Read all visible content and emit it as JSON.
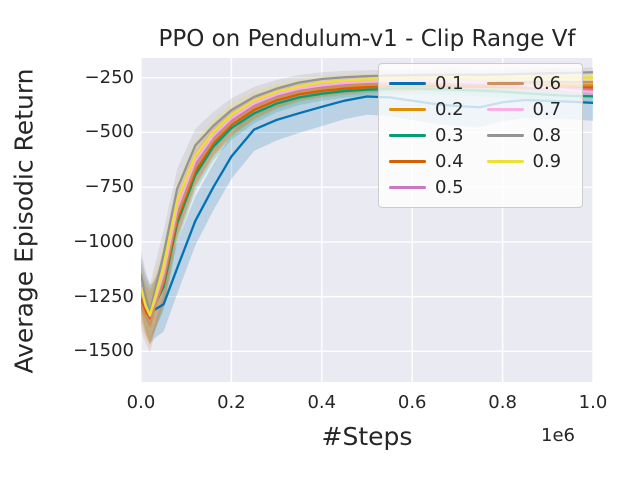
{
  "title": "PPO on Pendulum-v1 - Clip Range Vf",
  "chart_data": {
    "type": "line",
    "title": "PPO on Pendulum-v1 - Clip Range Vf",
    "xlabel": "#Steps",
    "ylabel": "Average Episodic Return",
    "x_offset_label": "1e6",
    "legend_title": null,
    "legend_position": "upper right",
    "legend_columns": 2,
    "grid": true,
    "background_color": "#eaeaf2",
    "grid_color": "#ffffff",
    "text_color": "#262626",
    "band_opacity": 0.2,
    "xlim": [
      0,
      1000000
    ],
    "ylim": [
      -1640,
      -160
    ],
    "x_ticks": {
      "values": [
        0,
        200000,
        400000,
        600000,
        800000,
        1000000
      ],
      "labels": [
        "0.0",
        "0.2",
        "0.4",
        "0.6",
        "0.8",
        "1.0"
      ]
    },
    "y_ticks": {
      "values": [
        -250,
        -500,
        -750,
        -1000,
        -1250,
        -1500
      ],
      "labels": [
        "−250",
        "−500",
        "−750",
        "−1000",
        "−1250",
        "−1500"
      ]
    },
    "x": [
      0,
      10000,
      20000,
      30000,
      50000,
      80000,
      120000,
      160000,
      200000,
      250000,
      300000,
      350000,
      400000,
      450000,
      500000,
      550000,
      600000,
      650000,
      700000,
      750000,
      800000,
      850000,
      900000,
      950000,
      1000000
    ],
    "series": [
      {
        "name": "0.1",
        "color": "#0173b2",
        "values": [
          -1190,
          -1280,
          -1330,
          -1310,
          -1285,
          -1120,
          -905,
          -750,
          -610,
          -487,
          -443,
          -412,
          -383,
          -355,
          -336,
          -340,
          -355,
          -370,
          -380,
          -385,
          -362,
          -352,
          -356,
          -360,
          -365
        ],
        "ci_halfwidth": [
          120,
          130,
          135,
          130,
          125,
          118,
          112,
          106,
          102,
          98,
          94,
          90,
          88,
          85,
          83,
          85,
          88,
          90,
          92,
          90,
          86,
          83,
          81,
          80,
          82
        ]
      },
      {
        "name": "0.2",
        "color": "#de8f05",
        "values": [
          -1230,
          -1300,
          -1345,
          -1290,
          -1180,
          -888,
          -668,
          -543,
          -460,
          -392,
          -348,
          -320,
          -304,
          -294,
          -288,
          -285,
          -283,
          -282,
          -283,
          -284,
          -285,
          -286,
          -286,
          -286,
          -285
        ],
        "ci_halfwidth": [
          105,
          115,
          122,
          116,
          106,
          88,
          72,
          62,
          53,
          45,
          39,
          34,
          31,
          29,
          27,
          26,
          25,
          25,
          24,
          24,
          23,
          23,
          22,
          22,
          22
        ]
      },
      {
        "name": "0.3",
        "color": "#029e73",
        "values": [
          -1200,
          -1285,
          -1332,
          -1290,
          -1205,
          -915,
          -695,
          -565,
          -480,
          -413,
          -368,
          -340,
          -323,
          -311,
          -305,
          -301,
          -300,
          -302,
          -305,
          -309,
          -314,
          -321,
          -328,
          -333,
          -335
        ],
        "ci_halfwidth": [
          100,
          112,
          120,
          115,
          108,
          90,
          74,
          63,
          54,
          46,
          40,
          35,
          32,
          30,
          28,
          27,
          26,
          26,
          26,
          27,
          28,
          30,
          32,
          33,
          34
        ]
      },
      {
        "name": "0.4",
        "color": "#d55e00",
        "values": [
          -1260,
          -1315,
          -1350,
          -1295,
          -1190,
          -898,
          -678,
          -550,
          -466,
          -398,
          -354,
          -326,
          -310,
          -300,
          -294,
          -291,
          -289,
          -289,
          -290,
          -292,
          -293,
          -294,
          -295,
          -295,
          -295
        ],
        "ci_halfwidth": [
          108,
          116,
          124,
          118,
          108,
          90,
          73,
          62,
          53,
          45,
          39,
          34,
          31,
          29,
          27,
          26,
          25,
          25,
          24,
          24,
          24,
          23,
          23,
          23,
          23
        ]
      },
      {
        "name": "0.5",
        "color": "#cc78bc",
        "values": [
          -1220,
          -1295,
          -1340,
          -1285,
          -1155,
          -860,
          -645,
          -525,
          -444,
          -376,
          -334,
          -307,
          -292,
          -281,
          -276,
          -273,
          -272,
          -274,
          -277,
          -281,
          -286,
          -291,
          -296,
          -301,
          -305
        ],
        "ci_halfwidth": [
          102,
          112,
          120,
          114,
          104,
          86,
          70,
          60,
          51,
          44,
          38,
          33,
          30,
          28,
          26,
          25,
          25,
          24,
          24,
          24,
          24,
          25,
          26,
          27,
          28
        ]
      },
      {
        "name": "0.6",
        "color": "#ca9161",
        "values": [
          -1290,
          -1340,
          -1380,
          -1300,
          -1175,
          -880,
          -660,
          -537,
          -455,
          -386,
          -343,
          -315,
          -299,
          -288,
          -281,
          -278,
          -276,
          -274,
          -273,
          -272,
          -271,
          -270,
          -270,
          -270,
          -270
        ],
        "ci_halfwidth": [
          115,
          122,
          128,
          120,
          110,
          92,
          75,
          63,
          54,
          46,
          40,
          35,
          32,
          29,
          27,
          26,
          25,
          25,
          24,
          24,
          24,
          23,
          23,
          23,
          23
        ]
      },
      {
        "name": "0.7",
        "color": "#fbafe4",
        "values": [
          -1170,
          -1265,
          -1325,
          -1275,
          -1140,
          -845,
          -630,
          -515,
          -435,
          -368,
          -327,
          -300,
          -285,
          -274,
          -269,
          -266,
          -265,
          -267,
          -269,
          -272,
          -276,
          -283,
          -296,
          -308,
          -315
        ],
        "ci_halfwidth": [
          100,
          110,
          118,
          112,
          102,
          85,
          70,
          59,
          50,
          43,
          37,
          33,
          30,
          28,
          27,
          26,
          26,
          26,
          27,
          28,
          30,
          33,
          36,
          38,
          40
        ]
      },
      {
        "name": "0.8",
        "color": "#949494",
        "values": [
          -1150,
          -1250,
          -1320,
          -1230,
          -1055,
          -758,
          -560,
          -470,
          -398,
          -338,
          -300,
          -272,
          -256,
          -248,
          -243,
          -240,
          -238,
          -237,
          -236,
          -237,
          -235,
          -232,
          -230,
          -228,
          -225
        ],
        "ci_halfwidth": [
          112,
          120,
          126,
          118,
          106,
          92,
          76,
          64,
          54,
          46,
          40,
          35,
          31,
          29,
          27,
          26,
          25,
          24,
          24,
          23,
          23,
          22,
          22,
          22,
          22
        ]
      },
      {
        "name": "0.9",
        "color": "#ece133",
        "values": [
          -1210,
          -1290,
          -1335,
          -1260,
          -1110,
          -812,
          -608,
          -498,
          -420,
          -355,
          -315,
          -290,
          -272,
          -263,
          -258,
          -256,
          -254,
          -253,
          -252,
          -251,
          -250,
          -251,
          -252,
          -251,
          -250
        ],
        "ci_halfwidth": [
          105,
          115,
          122,
          115,
          104,
          88,
          72,
          61,
          52,
          44,
          38,
          33,
          30,
          28,
          26,
          25,
          24,
          24,
          23,
          23,
          22,
          22,
          22,
          21,
          21
        ]
      }
    ]
  }
}
